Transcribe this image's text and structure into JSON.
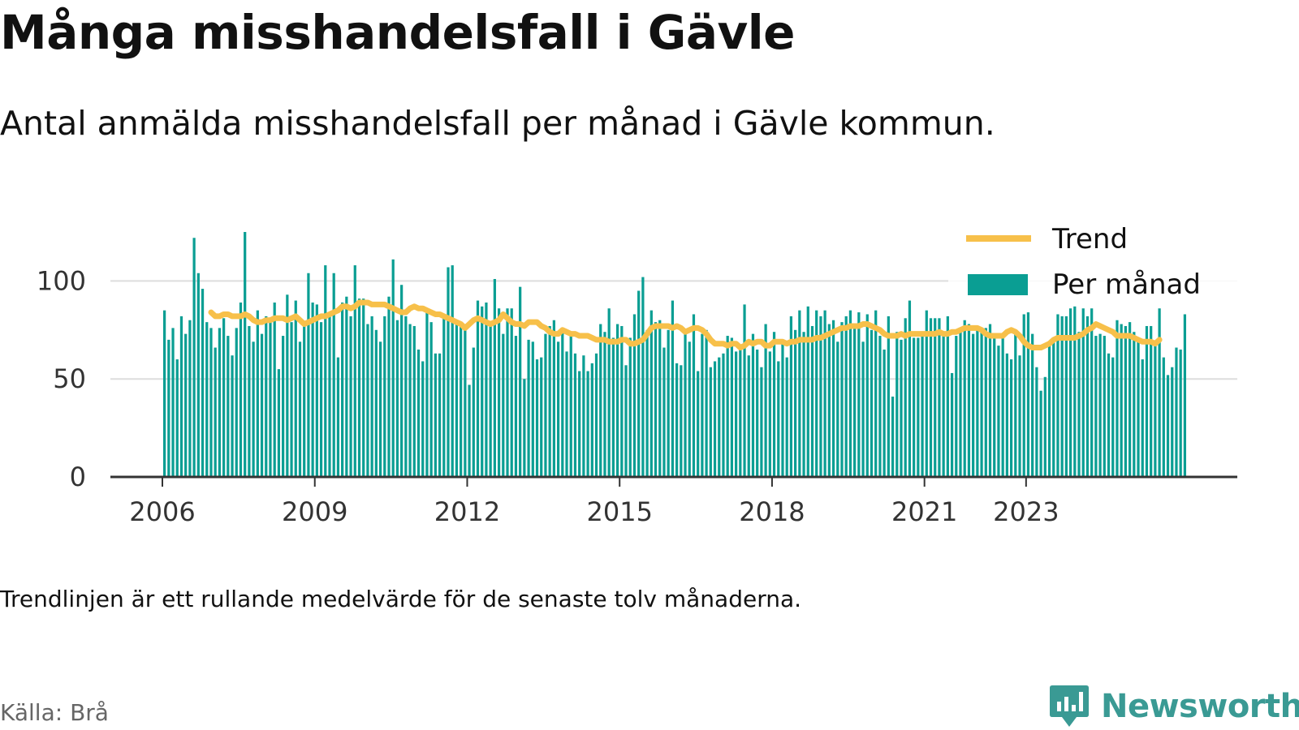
{
  "header": {
    "title": "Många misshandelsfall i Gävle",
    "subtitle": "Antal anmälda misshandelsfall per månad i Gävle kommun."
  },
  "footer": {
    "note": "Trendlinjen är ett rullande medelvärde för de senaste tolv månaderna.",
    "source": "Källa: Brå",
    "brand": "Newsworthy"
  },
  "colors": {
    "bars": "#0a9e93",
    "trend": "#f7c04a",
    "grid": "#dddddd",
    "axis": "#333333",
    "brand": "#3a9a94"
  },
  "chart_data": {
    "type": "bar",
    "x_start": "2006-01",
    "x_end": "2023-05",
    "ylim": [
      0,
      125
    ],
    "y_ticks": [
      0,
      50,
      100
    ],
    "x_ticks": [
      "2006",
      "2009",
      "2012",
      "2015",
      "2018",
      "2021",
      "2023"
    ],
    "grid": "horizontal",
    "legend_position": "top-right",
    "series": [
      {
        "name": "Per månad",
        "type": "bar",
        "values": [
          85,
          70,
          76,
          60,
          82,
          73,
          80,
          122,
          104,
          96,
          79,
          76,
          66,
          76,
          81,
          72,
          62,
          76,
          89,
          125,
          77,
          69,
          85,
          73,
          82,
          81,
          89,
          55,
          72,
          93,
          79,
          90,
          69,
          78,
          104,
          89,
          88,
          79,
          108,
          82,
          104,
          61,
          89,
          92,
          82,
          108,
          91,
          91,
          78,
          82,
          75,
          69,
          82,
          92,
          111,
          80,
          98,
          82,
          78,
          77,
          65,
          59,
          84,
          79,
          63,
          63,
          83,
          107,
          108,
          80,
          78,
          77,
          47,
          66,
          90,
          87,
          89,
          78,
          101,
          86,
          73,
          86,
          86,
          72,
          97,
          50,
          70,
          69,
          60,
          61,
          73,
          77,
          80,
          69,
          76,
          64,
          72,
          63,
          54,
          62,
          54,
          58,
          63,
          78,
          74,
          86,
          71,
          78,
          77,
          57,
          71,
          83,
          95,
          102,
          75,
          85,
          79,
          80,
          66,
          75,
          90,
          58,
          57,
          73,
          69,
          83,
          54,
          73,
          75,
          56,
          59,
          61,
          63,
          72,
          71,
          64,
          65,
          88,
          62,
          73,
          65,
          56,
          78,
          64,
          74,
          59,
          70,
          61,
          82,
          75,
          85,
          74,
          87,
          77,
          85,
          82,
          85,
          78,
          80,
          69,
          79,
          82,
          85,
          77,
          84,
          69,
          83,
          75,
          85,
          72,
          65,
          82,
          41,
          74,
          70,
          81,
          90,
          71,
          71,
          74,
          85,
          81,
          81,
          81,
          74,
          82,
          53,
          72,
          74,
          80,
          78,
          73,
          75,
          75,
          76,
          78,
          72,
          67,
          73,
          63,
          60,
          73,
          62,
          83,
          84,
          73,
          56,
          44,
          51,
          67,
          70,
          83,
          82,
          82,
          86,
          87,
          74,
          86,
          82,
          86,
          72,
          73,
          72,
          63,
          61,
          80,
          78,
          77,
          79,
          74,
          70,
          60,
          77,
          77,
          69,
          86,
          61,
          52,
          56,
          66,
          65,
          83
        ]
      },
      {
        "name": "Trend",
        "type": "line",
        "values": [
          null,
          null,
          null,
          null,
          null,
          null,
          null,
          null,
          null,
          null,
          null,
          84,
          82,
          82,
          83,
          83,
          82,
          82,
          82,
          83,
          82,
          80,
          79,
          79,
          80,
          80,
          81,
          81,
          81,
          80,
          81,
          82,
          80,
          78,
          79,
          80,
          81,
          82,
          82,
          83,
          84,
          85,
          87,
          87,
          86,
          87,
          89,
          89,
          89,
          88,
          88,
          88,
          88,
          87,
          86,
          85,
          84,
          84,
          86,
          87,
          86,
          86,
          85,
          84,
          83,
          83,
          82,
          81,
          80,
          79,
          78,
          76,
          78,
          80,
          81,
          80,
          79,
          78,
          79,
          80,
          83,
          81,
          79,
          78,
          78,
          77,
          79,
          79,
          79,
          77,
          76,
          74,
          73,
          73,
          75,
          74,
          73,
          73,
          72,
          72,
          72,
          71,
          70,
          70,
          70,
          69,
          69,
          69,
          70,
          70,
          68,
          68,
          69,
          70,
          73,
          76,
          77,
          77,
          77,
          77,
          76,
          77,
          76,
          74,
          75,
          76,
          76,
          75,
          73,
          70,
          68,
          68,
          68,
          67,
          68,
          68,
          66,
          67,
          69,
          68,
          69,
          69,
          67,
          67,
          69,
          69,
          69,
          68,
          69,
          69,
          70,
          70,
          70,
          70,
          71,
          71,
          72,
          73,
          74,
          75,
          76,
          76,
          77,
          77,
          77,
          78,
          78,
          77,
          76,
          75,
          73,
          72,
          72,
          72,
          73,
          72,
          73,
          73,
          73,
          73,
          73,
          73,
          73,
          74,
          73,
          73,
          74,
          74,
          75,
          76,
          76,
          76,
          76,
          75,
          73,
          72,
          72,
          72,
          72,
          74,
          75,
          74,
          72,
          69,
          67,
          66,
          66,
          66,
          67,
          68,
          70,
          71,
          71,
          71,
          71,
          71,
          72,
          73,
          75,
          76,
          78,
          77,
          76,
          75,
          74,
          72,
          72,
          72,
          72,
          71,
          70,
          69,
          69,
          69,
          68,
          70
        ]
      }
    ]
  }
}
